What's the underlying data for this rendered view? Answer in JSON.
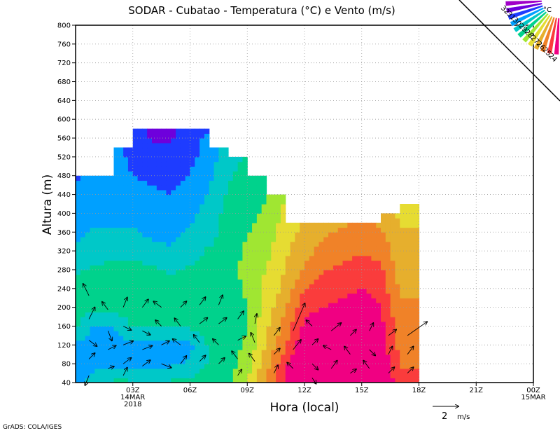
{
  "chart_data": {
    "type": "heatmap",
    "title": "SODAR - Cubatao - Temperatura (°C) e Vento (m/s)",
    "xlabel": "Hora (local)",
    "ylabel": "Altura (m)",
    "xlim": [
      0,
      24
    ],
    "ylim": [
      40,
      800
    ],
    "grid": true,
    "x_ticks": [
      {
        "value": 3,
        "label": "03Z",
        "sub1": "14MAR",
        "sub2": "2018"
      },
      {
        "value": 6,
        "label": "06Z",
        "sub1": "",
        "sub2": ""
      },
      {
        "value": 9,
        "label": "09Z",
        "sub1": "",
        "sub2": ""
      },
      {
        "value": 12,
        "label": "12Z",
        "sub1": "",
        "sub2": ""
      },
      {
        "value": 15,
        "label": "15Z",
        "sub1": "",
        "sub2": ""
      },
      {
        "value": 18,
        "label": "18Z",
        "sub1": "",
        "sub2": ""
      },
      {
        "value": 21,
        "label": "21Z",
        "sub1": "",
        "sub2": ""
      },
      {
        "value": 24,
        "label": "00Z",
        "sub1": "15MAR",
        "sub2": ""
      }
    ],
    "y_ticks": [
      40,
      80,
      120,
      160,
      200,
      240,
      280,
      320,
      360,
      400,
      440,
      480,
      520,
      560,
      600,
      640,
      680,
      720,
      760,
      800
    ],
    "y_tick_labels": [
      "40",
      "80",
      "120",
      "160",
      "200",
      "240",
      "280",
      "320",
      "360",
      "400",
      "440",
      "480",
      "520",
      "560",
      "600",
      "640",
      "680",
      "720",
      "760",
      "800"
    ],
    "colorbar": {
      "unit": "°C",
      "levels": [
        "24",
        "25",
        "26",
        "27",
        "28",
        "29",
        "30",
        "31",
        "32"
      ],
      "colors": [
        "#a000c8",
        "#6e00dc",
        "#1e3cff",
        "#00a0ff",
        "#00c8c8",
        "#00d28c",
        "#a0e632",
        "#e6dc32",
        "#e6af2d",
        "#f08228",
        "#fa3c3c",
        "#f00082"
      ]
    },
    "temperature_field": {
      "hours": [
        0,
        1,
        2,
        3,
        4,
        5,
        6,
        7,
        8,
        9,
        10,
        11,
        12,
        13,
        14,
        15,
        16,
        17,
        18
      ],
      "heights": [
        40,
        80,
        120,
        160,
        200,
        240,
        280,
        320,
        360,
        400,
        440,
        480,
        520,
        560,
        580
      ],
      "column_tops": [
        480,
        480,
        540,
        580,
        580,
        580,
        580,
        540,
        520,
        480,
        440,
        380,
        380,
        380,
        380,
        380,
        400,
        420,
        420
      ],
      "values": [
        [
          25.6,
          26.0,
          26.7,
          26.6,
          26.4,
          26.6,
          26.8,
          27.0,
          27.0,
          28.0,
          29.6,
          31.2,
          32.4,
          32.8,
          32.8,
          32.6,
          32.2,
          30.4,
          30.4
        ],
        [
          25.4,
          25.6,
          25.6,
          25.5,
          25.5,
          25.6,
          25.8,
          26.6,
          27.0,
          27.6,
          29.2,
          30.8,
          32.0,
          32.2,
          32.2,
          32.2,
          31.8,
          30.2,
          30.2
        ],
        [
          25.6,
          25.4,
          25.4,
          25.6,
          25.6,
          25.4,
          25.6,
          26.6,
          26.8,
          27.4,
          28.8,
          30.2,
          31.6,
          31.8,
          31.8,
          31.8,
          31.4,
          30.0,
          30.0
        ],
        [
          26.6,
          25.6,
          25.8,
          26.6,
          26.6,
          26.6,
          26.6,
          26.8,
          26.8,
          27.2,
          28.6,
          29.8,
          31.2,
          31.4,
          31.6,
          31.6,
          31.2,
          29.8,
          29.8
        ],
        [
          26.8,
          26.8,
          26.8,
          26.8,
          26.8,
          26.8,
          26.8,
          26.8,
          26.8,
          27.2,
          28.4,
          29.4,
          30.8,
          31.0,
          31.2,
          31.4,
          31.0,
          29.6,
          29.6
        ],
        [
          26.8,
          26.8,
          26.8,
          26.8,
          26.8,
          26.8,
          26.8,
          26.8,
          26.8,
          27.4,
          28.2,
          29.0,
          30.2,
          30.6,
          30.8,
          31.0,
          30.6,
          29.4,
          29.4
        ],
        [
          26.4,
          26.6,
          26.8,
          26.8,
          26.6,
          26.4,
          26.6,
          26.8,
          26.8,
          27.6,
          28.0,
          28.8,
          29.6,
          30.2,
          30.4,
          30.6,
          30.4,
          29.2,
          29.2
        ],
        [
          25.8,
          26.0,
          26.2,
          26.2,
          26.0,
          25.8,
          26.2,
          26.6,
          26.8,
          27.4,
          27.8,
          28.6,
          29.2,
          29.8,
          30.0,
          30.2,
          30.0,
          29.0,
          29.0
        ],
        [
          25.6,
          25.8,
          25.8,
          25.8,
          25.6,
          25.6,
          25.8,
          26.2,
          26.8,
          27.2,
          27.6,
          28.4,
          29.0,
          29.4,
          29.6,
          29.8,
          29.6,
          28.8,
          28.8
        ],
        [
          25.6,
          25.6,
          25.6,
          25.6,
          25.4,
          25.4,
          25.6,
          26.0,
          26.8,
          27.0,
          27.4,
          28.2,
          28.8,
          29.0,
          29.2,
          29.4,
          29.2,
          28.6,
          28.6
        ],
        [
          25.6,
          25.6,
          25.6,
          25.4,
          25.2,
          25.0,
          25.4,
          25.8,
          26.6,
          26.8,
          27.2,
          28.0,
          28.4,
          28.6,
          28.6,
          28.8,
          28.8,
          28.4,
          28.4
        ],
        [
          24.8,
          25.4,
          25.4,
          25.0,
          24.8,
          24.6,
          25.0,
          25.6,
          26.4,
          26.8,
          27.0,
          27.8,
          28.2,
          28.2,
          28.2,
          28.4,
          28.4,
          28.2,
          28.2
        ],
        [
          24.6,
          24.8,
          25.4,
          24.8,
          24.6,
          24.4,
          24.8,
          25.4,
          26.2,
          26.6,
          26.8,
          27.6,
          28.0,
          28.0,
          28.0,
          28.2,
          28.2,
          28.0,
          28.0
        ],
        [
          24.6,
          24.6,
          25.0,
          24.6,
          24.2,
          24.2,
          24.6,
          25.2,
          26.0,
          26.4,
          26.6,
          27.4,
          27.8,
          27.8,
          27.8,
          28.0,
          28.0,
          27.8,
          27.8
        ],
        [
          24.6,
          24.6,
          24.8,
          24.4,
          24.2,
          24.2,
          24.4,
          25.0,
          25.8,
          26.2,
          26.4,
          27.2,
          27.6,
          27.6,
          27.6,
          27.8,
          27.8,
          27.6,
          27.6
        ]
      ]
    },
    "wind_vectors": [
      {
        "x": 0.7,
        "y": 225,
        "u": -0.3,
        "v": 0.6
      },
      {
        "x": 0.7,
        "y": 175,
        "u": 0.3,
        "v": 0.6
      },
      {
        "x": 0.7,
        "y": 130,
        "u": 0.4,
        "v": -0.3
      },
      {
        "x": 0.7,
        "y": 90,
        "u": 0.3,
        "v": 0.3
      },
      {
        "x": 0.7,
        "y": 55,
        "u": -0.2,
        "v": -0.5
      },
      {
        "x": 1.7,
        "y": 195,
        "u": -0.3,
        "v": 0.4
      },
      {
        "x": 1.7,
        "y": 150,
        "u": 0.2,
        "v": -0.5
      },
      {
        "x": 1.7,
        "y": 110,
        "u": 0.4,
        "v": 0.2
      },
      {
        "x": 1.7,
        "y": 70,
        "u": 0.3,
        "v": 0.1
      },
      {
        "x": 2.5,
        "y": 200,
        "u": 0.2,
        "v": 0.5
      },
      {
        "x": 2.5,
        "y": 160,
        "u": 0.4,
        "v": -0.2
      },
      {
        "x": 2.5,
        "y": 120,
        "u": 0.5,
        "v": 0.2
      },
      {
        "x": 2.5,
        "y": 80,
        "u": 0.4,
        "v": 0.3
      },
      {
        "x": 2.5,
        "y": 55,
        "u": 0.2,
        "v": 0.4
      },
      {
        "x": 3.5,
        "y": 200,
        "u": 0.3,
        "v": 0.4
      },
      {
        "x": 3.5,
        "y": 150,
        "u": 0.4,
        "v": -0.2
      },
      {
        "x": 3.5,
        "y": 110,
        "u": 0.5,
        "v": 0.2
      },
      {
        "x": 3.5,
        "y": 75,
        "u": 0.4,
        "v": 0.3
      },
      {
        "x": 4.5,
        "y": 200,
        "u": -0.4,
        "v": 0.3
      },
      {
        "x": 4.5,
        "y": 160,
        "u": -0.3,
        "v": 0.3
      },
      {
        "x": 4.5,
        "y": 120,
        "u": 0.4,
        "v": 0.2
      },
      {
        "x": 4.5,
        "y": 80,
        "u": 0.5,
        "v": -0.2
      },
      {
        "x": 5.5,
        "y": 200,
        "u": 0.3,
        "v": 0.3
      },
      {
        "x": 5.5,
        "y": 160,
        "u": -0.3,
        "v": 0.4
      },
      {
        "x": 5.5,
        "y": 120,
        "u": -0.4,
        "v": 0.3
      },
      {
        "x": 5.5,
        "y": 80,
        "u": 0.3,
        "v": 0.4
      },
      {
        "x": 6.5,
        "y": 205,
        "u": 0.3,
        "v": 0.4
      },
      {
        "x": 6.5,
        "y": 165,
        "u": 0.4,
        "v": 0.3
      },
      {
        "x": 6.5,
        "y": 125,
        "u": -0.3,
        "v": 0.4
      },
      {
        "x": 6.5,
        "y": 85,
        "u": 0.3,
        "v": 0.3
      },
      {
        "x": 7.5,
        "y": 205,
        "u": 0.2,
        "v": 0.5
      },
      {
        "x": 7.5,
        "y": 165,
        "u": 0.4,
        "v": 0.3
      },
      {
        "x": 7.5,
        "y": 120,
        "u": -0.3,
        "v": 0.3
      },
      {
        "x": 7.5,
        "y": 80,
        "u": 0.3,
        "v": 0.3
      },
      {
        "x": 8.5,
        "y": 175,
        "u": 0.3,
        "v": 0.4
      },
      {
        "x": 8.5,
        "y": 130,
        "u": 0.4,
        "v": 0.2
      },
      {
        "x": 8.5,
        "y": 90,
        "u": -0.3,
        "v": 0.4
      },
      {
        "x": 8.5,
        "y": 55,
        "u": 0.2,
        "v": 0.3
      },
      {
        "x": 9.4,
        "y": 165,
        "u": 0.1,
        "v": 0.5
      },
      {
        "x": 9.4,
        "y": 125,
        "u": -0.2,
        "v": 0.5
      },
      {
        "x": 9.4,
        "y": 85,
        "u": -0.3,
        "v": 0.4
      },
      {
        "x": 10.4,
        "y": 140,
        "u": 0.3,
        "v": 0.4
      },
      {
        "x": 10.4,
        "y": 100,
        "u": 0.3,
        "v": 0.3
      },
      {
        "x": 10.4,
        "y": 60,
        "u": 0.2,
        "v": 0.4
      },
      {
        "x": 11.4,
        "y": 150,
        "u": 0.6,
        "v": 1.4
      },
      {
        "x": 11.4,
        "y": 110,
        "u": 0.4,
        "v": 0.5
      },
      {
        "x": 11.4,
        "y": 70,
        "u": -0.3,
        "v": 0.3
      },
      {
        "x": 12.4,
        "y": 160,
        "u": -0.3,
        "v": 0.3
      },
      {
        "x": 12.4,
        "y": 120,
        "u": 0.3,
        "v": 0.3
      },
      {
        "x": 12.4,
        "y": 80,
        "u": 0.3,
        "v": -0.3
      },
      {
        "x": 12.4,
        "y": 50,
        "u": 0.2,
        "v": -0.3
      },
      {
        "x": 13.4,
        "y": 150,
        "u": 0.5,
        "v": 0.4
      },
      {
        "x": 13.4,
        "y": 110,
        "u": -0.4,
        "v": 0.2
      },
      {
        "x": 13.4,
        "y": 70,
        "u": 0.3,
        "v": 0.4
      },
      {
        "x": 14.4,
        "y": 140,
        "u": 0.3,
        "v": 0.3
      },
      {
        "x": 14.4,
        "y": 100,
        "u": -0.3,
        "v": 0.4
      },
      {
        "x": 14.4,
        "y": 60,
        "u": 0.3,
        "v": 0.2
      },
      {
        "x": 15.4,
        "y": 150,
        "u": 0.2,
        "v": 0.4
      },
      {
        "x": 15.4,
        "y": 110,
        "u": 0.3,
        "v": -0.3
      },
      {
        "x": 15.4,
        "y": 70,
        "u": -0.3,
        "v": 0.4
      },
      {
        "x": 16.4,
        "y": 140,
        "u": 0.4,
        "v": 0.3
      },
      {
        "x": 16.4,
        "y": 100,
        "u": 0.2,
        "v": 0.4
      },
      {
        "x": 16.4,
        "y": 60,
        "u": 0.3,
        "v": 0.3
      },
      {
        "x": 17.4,
        "y": 140,
        "u": 1.0,
        "v": 0.7
      },
      {
        "x": 17.4,
        "y": 100,
        "u": 0.3,
        "v": 0.4
      },
      {
        "x": 17.4,
        "y": 60,
        "u": 0.3,
        "v": 0.3
      }
    ],
    "wind_reference": {
      "value_label": "2",
      "unit_label": "m/s"
    }
  },
  "footer": {
    "credit": "GrADS: COLA/IGES"
  }
}
